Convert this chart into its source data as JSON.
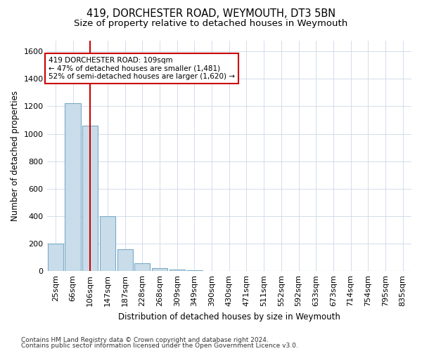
{
  "title1": "419, DORCHESTER ROAD, WEYMOUTH, DT3 5BN",
  "title2": "Size of property relative to detached houses in Weymouth",
  "xlabel": "Distribution of detached houses by size in Weymouth",
  "ylabel": "Number of detached properties",
  "bar_values": [
    200,
    1220,
    1060,
    400,
    160,
    55,
    20,
    12,
    5,
    0,
    0,
    0,
    0,
    0,
    0,
    0,
    0,
    0,
    0,
    0,
    0
  ],
  "categories": [
    "25sqm",
    "66sqm",
    "106sqm",
    "147sqm",
    "187sqm",
    "228sqm",
    "268sqm",
    "309sqm",
    "349sqm",
    "390sqm",
    "430sqm",
    "471sqm",
    "511sqm",
    "552sqm",
    "592sqm",
    "633sqm",
    "673sqm",
    "714sqm",
    "754sqm",
    "795sqm",
    "835sqm"
  ],
  "bar_color": "#c9dcea",
  "bar_edge_color": "#7aaac8",
  "property_line_index": 2,
  "annotation_text": "419 DORCHESTER ROAD: 109sqm\n← 47% of detached houses are smaller (1,481)\n52% of semi-detached houses are larger (1,620) →",
  "annotation_box_color": "white",
  "annotation_box_edge": "#cc0000",
  "red_line_color": "#cc0000",
  "ylim": [
    0,
    1680
  ],
  "yticks": [
    0,
    200,
    400,
    600,
    800,
    1000,
    1200,
    1400,
    1600
  ],
  "footer1": "Contains HM Land Registry data © Crown copyright and database right 2024.",
  "footer2": "Contains public sector information licensed under the Open Government Licence v3.0.",
  "bg_color": "#ffffff",
  "grid_color": "#ccd8e8",
  "title1_fontsize": 10.5,
  "title2_fontsize": 9.5,
  "xlabel_fontsize": 8.5,
  "ylabel_fontsize": 8.5,
  "tick_fontsize": 8,
  "annotation_fontsize": 7.5,
  "footer_fontsize": 6.5
}
